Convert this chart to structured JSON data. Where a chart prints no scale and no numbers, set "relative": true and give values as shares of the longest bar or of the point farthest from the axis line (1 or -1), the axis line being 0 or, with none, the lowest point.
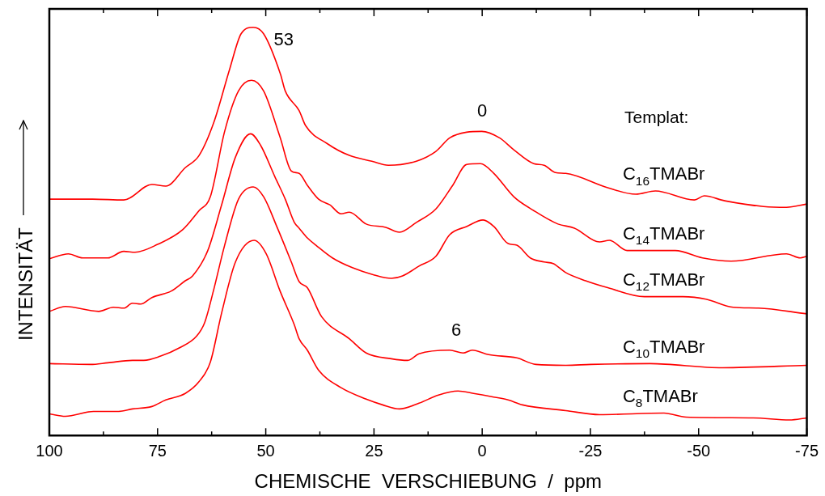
{
  "chart_data": {
    "type": "line",
    "relative": true,
    "xlabel": "CHEMISCHE  VERSCHIEBUNG  /  ppm",
    "ylabel": "INTENSITÄT",
    "xlim": [
      100,
      -75
    ],
    "xticks": [
      100,
      {
        "value": 87.5,
        "label": null
      },
      75,
      {
        "value": 62.5,
        "label": null
      },
      50,
      {
        "value": 37.5,
        "label": null
      },
      25,
      {
        "value": 12.5,
        "label": null
      },
      0,
      {
        "value": -12.5,
        "label": null
      },
      -25,
      {
        "value": -37.5,
        "label": null
      },
      -50,
      {
        "value": -62.5,
        "label": null
      },
      -75
    ],
    "tick_labels": "x",
    "legend": false,
    "annotations": [
      "Templat:",
      {
        "text": "53",
        "x": 53,
        "y": 1
      },
      {
        "text": "0",
        "x": 0,
        "y": 0.745
      },
      {
        "text": "6",
        "x": 6,
        "y": 0.209
      }
    ],
    "series": [
      {
        "name": "C$_{16}$TMABr",
        "color": "#ff0000",
        "x": [
          100,
          90,
          82.8,
          76.3,
          73.1,
          68.6,
          65.4,
          62,
          58.3,
          55.7,
          52.9,
          50.5,
          46.6,
          45.5,
          42.3,
          40.8,
          35.8,
          30.7,
          25.5,
          21.7,
          15.2,
          10.7,
          7.5,
          3.6,
          0.1,
          -4,
          -7.3,
          -11.9,
          -14.3,
          -16.9,
          -19.3,
          -29,
          -35.5,
          -40,
          -49,
          -51.3,
          -56,
          -65,
          -70.3,
          -75
        ],
        "values": [
          0.579,
          0.579,
          0.577,
          0.615,
          0.611,
          0.656,
          0.686,
          0.767,
          0.899,
          0.984,
          1,
          0.984,
          0.885,
          0.844,
          0.796,
          0.759,
          0.715,
          0.686,
          0.672,
          0.662,
          0.672,
          0.696,
          0.729,
          0.743,
          0.745,
          0.729,
          0.7,
          0.666,
          0.662,
          0.644,
          0.642,
          0.607,
          0.591,
          0.599,
          0.577,
          0.587,
          0.575,
          0.561,
          0.559,
          0.567
        ]
      },
      {
        "name": "C$_{14}$TMABr",
        "color": "#ff0000",
        "x": [
          100,
          95.6,
          92.3,
          86.5,
          82.8,
          80.2,
          75,
          69.2,
          65.4,
          62.8,
          59.5,
          56.3,
          53.3,
          50.5,
          46.7,
          44.1,
          42.3,
          40.4,
          37.8,
          35.2,
          32.6,
          30.7,
          26.8,
          22.3,
          19.1,
          15.2,
          10.7,
          6.8,
          3.6,
          0.4,
          -2.7,
          -7.3,
          -11.9,
          -17.5,
          -21.3,
          -27.1,
          -29.4,
          -33.5,
          -44.6,
          -50.9,
          -57.5,
          -70.3,
          -73.5,
          -75
        ],
        "values": [
          0.433,
          0.445,
          0.435,
          0.435,
          0.451,
          0.449,
          0.468,
          0.504,
          0.551,
          0.585,
          0.745,
          0.844,
          0.87,
          0.844,
          0.731,
          0.648,
          0.642,
          0.613,
          0.579,
          0.565,
          0.543,
          0.547,
          0.518,
          0.51,
          0.498,
          0.522,
          0.555,
          0.613,
          0.664,
          0.666,
          0.642,
          0.585,
          0.551,
          0.518,
          0.508,
          0.474,
          0.478,
          0.453,
          0.453,
          0.435,
          0.427,
          0.445,
          0.435,
          0.439
        ]
      },
      {
        "name": "C$_{12}$TMABr",
        "color": "#ff0000",
        "x": [
          100,
          96.3,
          88.6,
          85.2,
          82.8,
          80.8,
          78.9,
          76.3,
          71.8,
          68.6,
          66.9,
          63.4,
          60.2,
          57,
          53.5,
          51.2,
          47.9,
          45.5,
          43.4,
          42.3,
          40.4,
          38.4,
          34.6,
          30,
          24.9,
          21,
          18.4,
          14.6,
          10.7,
          7.5,
          3.6,
          -0.2,
          -2.7,
          -6,
          -8,
          -11.1,
          -14.3,
          -16.4,
          -19.3,
          -23.9,
          -29,
          -37.5,
          -46.4,
          -51.7,
          -58,
          -63.8,
          -75
        ],
        "values": [
          0.304,
          0.316,
          0.304,
          0.314,
          0.312,
          0.324,
          0.322,
          0.338,
          0.354,
          0.379,
          0.391,
          0.453,
          0.565,
          0.682,
          0.739,
          0.711,
          0.634,
          0.579,
          0.522,
          0.508,
          0.484,
          0.466,
          0.435,
          0.411,
          0.393,
          0.385,
          0.391,
          0.415,
          0.439,
          0.492,
          0.512,
          0.528,
          0.512,
          0.47,
          0.466,
          0.435,
          0.425,
          0.421,
          0.399,
          0.379,
          0.362,
          0.34,
          0.34,
          0.334,
          0.314,
          0.312,
          0.298
        ]
      },
      {
        "name": "C$_{10}$TMABr",
        "color": "#ff0000",
        "x": [
          100,
          90.5,
          86.5,
          80.8,
          78.2,
          74.4,
          69.9,
          66,
          64.1,
          62.1,
          59.5,
          56.3,
          52.9,
          50.5,
          47.3,
          44.1,
          42.3,
          40.4,
          37.1,
          30.7,
          26.8,
          21,
          17.2,
          14.6,
          7.5,
          4.4,
          2.3,
          -1.5,
          -8,
          -12.4,
          -19.3,
          -25.1,
          -38.8,
          -55.5,
          -75
        ],
        "values": [
          0.176,
          0.174,
          0.178,
          0.184,
          0.184,
          0.194,
          0.215,
          0.243,
          0.277,
          0.354,
          0.466,
          0.579,
          0.609,
          0.585,
          0.508,
          0.425,
          0.377,
          0.362,
          0.291,
          0.237,
          0.202,
          0.188,
          0.184,
          0.2,
          0.209,
          0.202,
          0.209,
          0.198,
          0.19,
          0.174,
          0.172,
          0.174,
          0.176,
          0.166,
          0.172
        ]
      },
      {
        "name": "C$_{8}$TMABr",
        "color": "#ff0000",
        "x": [
          100,
          96.3,
          89.8,
          84,
          80.8,
          76.3,
          73.1,
          68.6,
          65.4,
          62.8,
          60.2,
          57,
          52.7,
          49.9,
          46.7,
          43.4,
          42.3,
          40.4,
          37.8,
          32.6,
          26.8,
          23,
          19.1,
          14.6,
          10.1,
          5.6,
          2,
          -2.2,
          -6,
          -9.3,
          -19.3,
          -27.1,
          -42,
          -47.1,
          -62.6,
          -71,
          -75
        ],
        "values": [
          0.053,
          0.047,
          0.059,
          0.059,
          0.065,
          0.071,
          0.087,
          0.103,
          0.132,
          0.18,
          0.3,
          0.425,
          0.478,
          0.445,
          0.354,
          0.271,
          0.237,
          0.209,
          0.16,
          0.117,
          0.089,
          0.075,
          0.065,
          0.079,
          0.099,
          0.109,
          0.103,
          0.095,
          0.087,
          0.075,
          0.061,
          0.051,
          0.055,
          0.045,
          0.043,
          0.038,
          0.043
        ]
      }
    ]
  }
}
